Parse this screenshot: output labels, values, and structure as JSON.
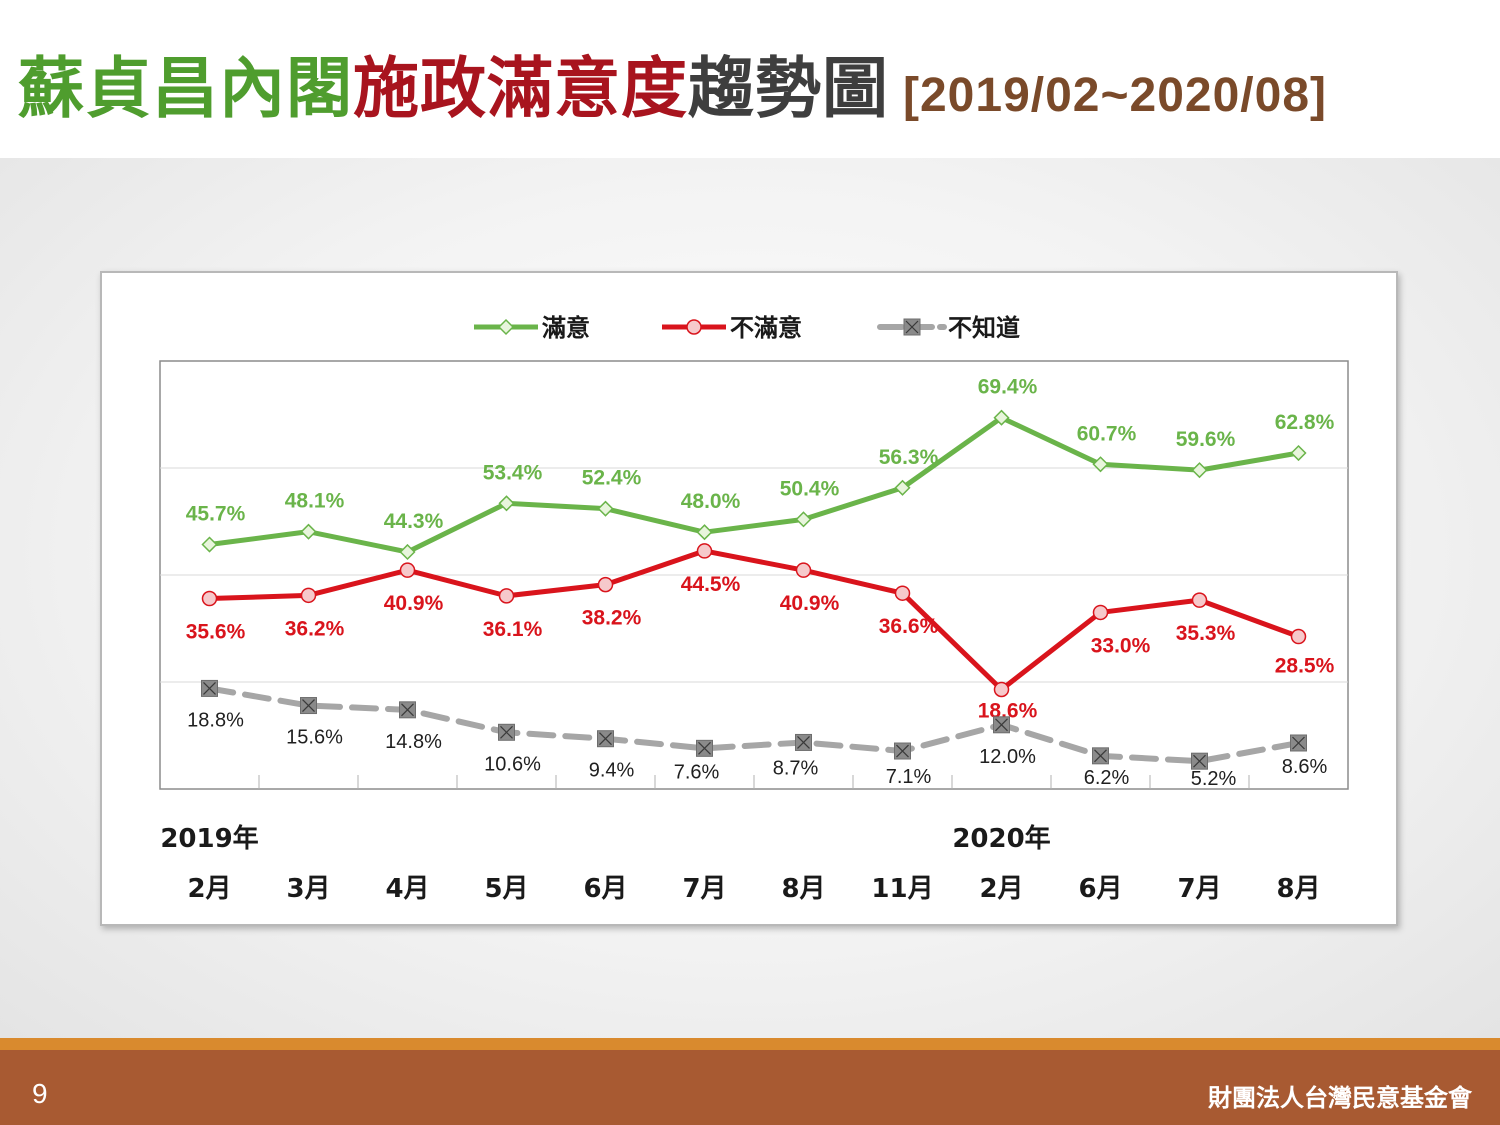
{
  "title": {
    "part1": "蘇貞昌內閣",
    "part2": "施政滿意度",
    "part3": "趨勢圖",
    "range": "[2019/02~2020/08]"
  },
  "footer": {
    "page_number": "9",
    "organization": "財團法人台灣民意基金會"
  },
  "colors": {
    "satisfied": "#6ab44a",
    "dissatisfied": "#d9141c",
    "unknown": "#a6a6a6",
    "title_green": "#4f9d2e",
    "title_red": "#a8141e",
    "footer": "#a85a32"
  },
  "chart_data": {
    "type": "line",
    "categories": [
      "2月",
      "3月",
      "4月",
      "5月",
      "6月",
      "7月",
      "8月",
      "11月",
      "2月",
      "6月",
      "7月",
      "8月"
    ],
    "year_labels": [
      {
        "text": "2019年",
        "category_index": 0
      },
      {
        "text": "2020年",
        "category_index": 8
      }
    ],
    "ylim": [
      0,
      80
    ],
    "grid": true,
    "legend_position": "top",
    "series": [
      {
        "name": "滿意",
        "color": "#6ab44a",
        "marker": "diamond",
        "dashed": false,
        "values": [
          45.7,
          48.1,
          44.3,
          53.4,
          52.4,
          48.0,
          50.4,
          56.3,
          69.4,
          60.7,
          59.6,
          62.8
        ],
        "labels": [
          "45.7%",
          "48.1%",
          "44.3%",
          "53.4%",
          "52.4%",
          "48.0%",
          "50.4%",
          "56.3%",
          "69.4%",
          "60.7%",
          "59.6%",
          "62.8%"
        ]
      },
      {
        "name": "不滿意",
        "color": "#d9141c",
        "marker": "circle",
        "dashed": false,
        "values": [
          35.6,
          36.2,
          40.9,
          36.1,
          38.2,
          44.5,
          40.9,
          36.6,
          18.6,
          33.0,
          35.3,
          28.5
        ],
        "labels": [
          "35.6%",
          "36.2%",
          "40.9%",
          "36.1%",
          "38.2%",
          "44.5%",
          "40.9%",
          "36.6%",
          "18.6%",
          "33.0%",
          "35.3%",
          "28.5%"
        ]
      },
      {
        "name": "不知道",
        "color": "#a6a6a6",
        "marker": "square-x",
        "dashed": true,
        "values": [
          18.8,
          15.6,
          14.8,
          10.6,
          9.4,
          7.6,
          8.7,
          7.1,
          12.0,
          6.2,
          5.2,
          8.6
        ],
        "labels": [
          "18.8%",
          "15.6%",
          "14.8%",
          "10.6%",
          "9.4%",
          "7.6%",
          "8.7%",
          "7.1%",
          "12.0%",
          "6.2%",
          "5.2%",
          "8.6%"
        ]
      }
    ]
  }
}
